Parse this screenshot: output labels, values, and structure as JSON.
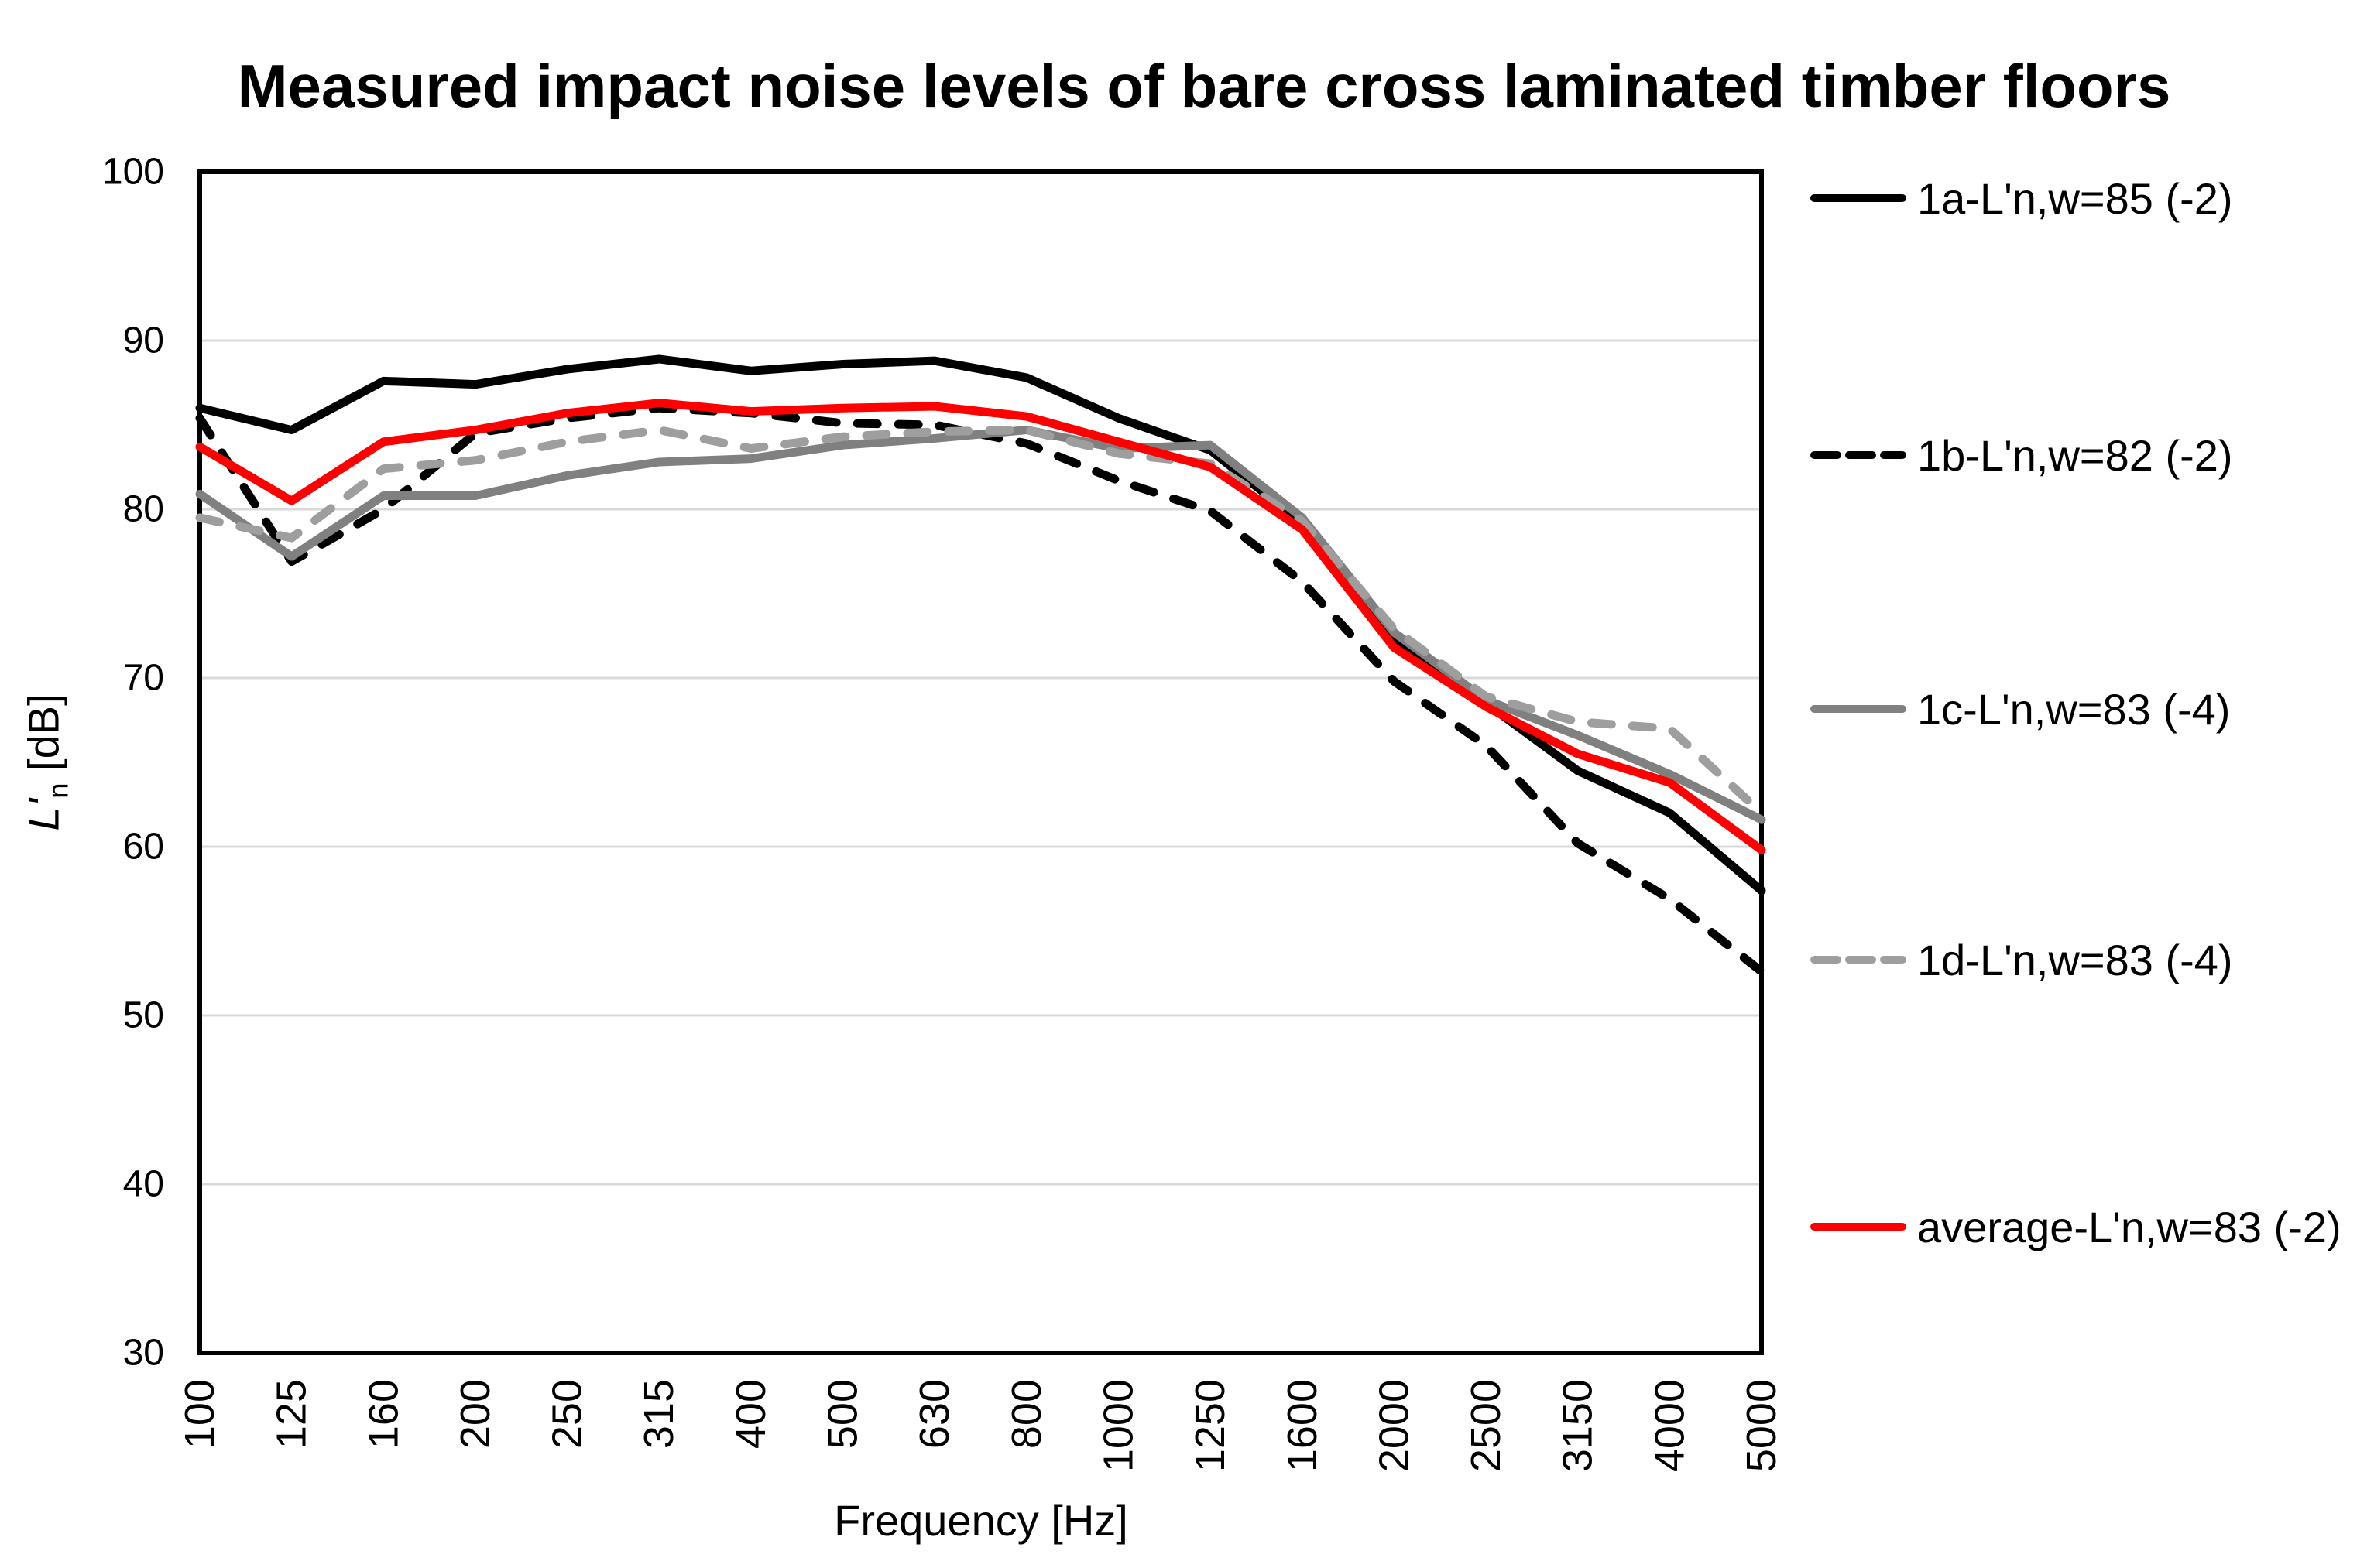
{
  "title": "Measured impact noise levels of bare cross laminated timber floors",
  "y_axis": {
    "title_symbol": "L'",
    "title_subscript": "n",
    "title_unit": " [dB]",
    "ticks": [
      "100",
      "90",
      "80",
      "70",
      "60",
      "50",
      "40",
      "30"
    ]
  },
  "x_axis": {
    "title": "Frequency [Hz]"
  },
  "chart_data": {
    "type": "line",
    "title": "Measured impact noise levels of bare cross laminated timber floors",
    "xlabel": "Frequency [Hz]",
    "ylabel": "L'n [dB]",
    "ylim": [
      30,
      100
    ],
    "ytick_step": 10,
    "grid": true,
    "grid_color": "#d9d9d9",
    "border_color": "#000000",
    "legend_position": "right",
    "categories": [
      "100",
      "125",
      "160",
      "200",
      "250",
      "315",
      "400",
      "500",
      "630",
      "800",
      "1000",
      "1250",
      "1600",
      "2000",
      "2500",
      "3150",
      "4000",
      "5000"
    ],
    "series": [
      {
        "id": "1a",
        "name": "1a-L'n,w=85 (-2)",
        "color": "#000000",
        "dash": false,
        "values": [
          86.0,
          84.7,
          87.6,
          87.4,
          88.3,
          88.9,
          88.2,
          88.6,
          88.8,
          87.8,
          85.4,
          83.5,
          79.2,
          72.3,
          68.5,
          64.5,
          62.0,
          57.4
        ]
      },
      {
        "id": "1b",
        "name": "1b-L'n,w=82 (-2)",
        "color": "#000000",
        "dash": true,
        "values": [
          85.4,
          76.9,
          80.0,
          84.5,
          85.4,
          86.0,
          85.7,
          85.1,
          85.0,
          83.9,
          81.7,
          79.9,
          75.7,
          69.8,
          66.0,
          60.2,
          56.9,
          52.6
        ]
      },
      {
        "id": "1c",
        "name": "1c-L'n,w=83 (-4)",
        "color": "#808080",
        "dash": false,
        "values": [
          80.9,
          77.2,
          80.8,
          80.8,
          82.0,
          82.8,
          83.0,
          83.8,
          84.2,
          84.7,
          83.6,
          83.8,
          79.5,
          72.7,
          68.7,
          66.6,
          64.3,
          61.6
        ]
      },
      {
        "id": "1d",
        "name": "1d-L'n,w=83 (-4)",
        "color": "#9e9e9e",
        "dash": true,
        "values": [
          79.5,
          78.3,
          82.4,
          82.9,
          84.0,
          84.7,
          83.6,
          84.3,
          84.6,
          84.7,
          83.3,
          82.7,
          79.3,
          72.9,
          68.9,
          67.4,
          67.0,
          62.0
        ]
      },
      {
        "id": "avg",
        "name": "average-L'n,w=83 (-2)",
        "color": "#ff0000",
        "dash": false,
        "values": [
          83.7,
          80.5,
          84.0,
          84.7,
          85.7,
          86.3,
          85.8,
          86.0,
          86.1,
          85.5,
          84.0,
          82.5,
          78.8,
          71.8,
          68.3,
          65.5,
          63.8,
          59.8
        ]
      }
    ]
  }
}
